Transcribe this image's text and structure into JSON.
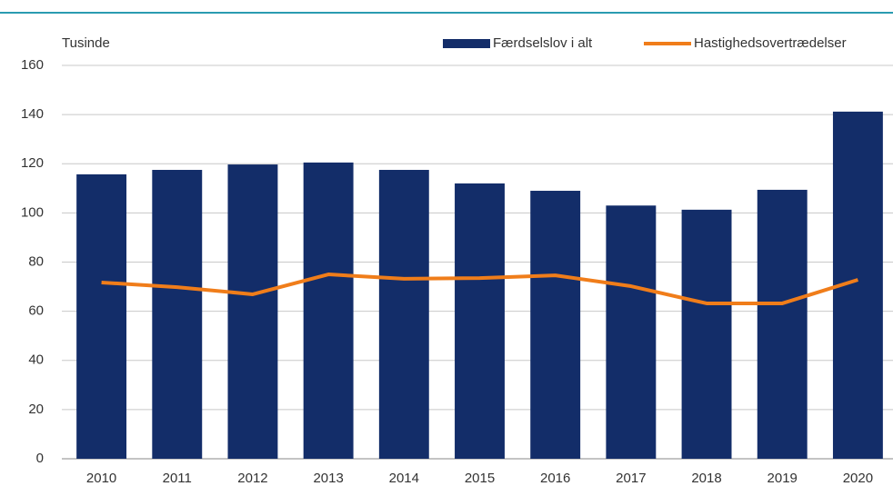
{
  "chart_data": {
    "type": "bar_line",
    "ylabel": "Tusinde",
    "categories": [
      "2010",
      "2011",
      "2012",
      "2013",
      "2014",
      "2015",
      "2016",
      "2017",
      "2018",
      "2019",
      "2020"
    ],
    "series": [
      {
        "name": "Færdselslov i alt",
        "type": "bar",
        "color": "#132d69",
        "values": [
          115.7,
          117.5,
          119.7,
          120.5,
          117.5,
          112,
          109,
          103,
          101.3,
          109.4,
          141.2
        ]
      },
      {
        "name": "Hastighedsovertrædelser",
        "type": "line",
        "color": "#f07d1a",
        "values": [
          71.7,
          69.8,
          66.9,
          75,
          73.2,
          73.5,
          74.6,
          70.2,
          63.2,
          63.2,
          72.8
        ]
      }
    ],
    "ylim": [
      0,
      160
    ],
    "yticks": [
      0,
      20,
      40,
      60,
      80,
      100,
      120,
      140,
      160
    ],
    "grid": true
  }
}
